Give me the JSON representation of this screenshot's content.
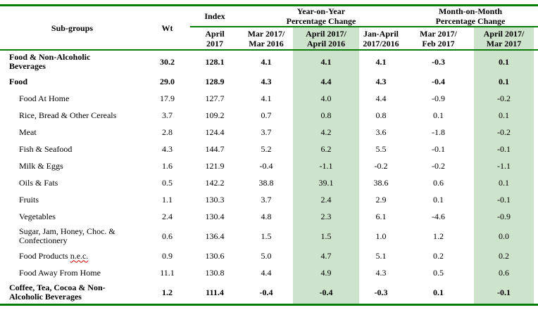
{
  "colors": {
    "border_green": "#007d00",
    "highlight_green": "#cee3cc",
    "spellcheck_red": "#cc0000"
  },
  "table": {
    "header": {
      "subgroups": "Sub-groups",
      "wt": "Wt",
      "index_group": "Index",
      "yoy_group_line1": "Year-on-Year",
      "yoy_group_line2": "Percentage Change",
      "mom_group_line1": "Month-on-Month",
      "mom_group_line2": "Percentage Change",
      "cols": [
        {
          "line1": "April",
          "line2": "2017",
          "highlight": false
        },
        {
          "line1": "Mar 2017/",
          "line2": "Mar 2016",
          "highlight": false
        },
        {
          "line1": "April 2017/",
          "line2": "April 2016",
          "highlight": true
        },
        {
          "line1": "Jan-April",
          "line2": "2017/2016",
          "highlight": false
        },
        {
          "line1": "Mar 2017/",
          "line2": "Feb 2017",
          "highlight": false
        },
        {
          "line1": "April 2017/",
          "line2": "Mar 2017",
          "highlight": true
        }
      ]
    },
    "rows": [
      {
        "name": "Food & Non-Alcoholic",
        "name2": "Beverages",
        "wavy": "",
        "bold": true,
        "indent": false,
        "values": [
          "30.2",
          "128.1",
          "4.1",
          "4.1",
          "4.1",
          "-0.3",
          "0.1"
        ]
      },
      {
        "name": "Food",
        "name2": "",
        "wavy": "",
        "bold": true,
        "indent": false,
        "values": [
          "29.0",
          "128.9",
          "4.3",
          "4.4",
          "4.3",
          "-0.4",
          "0.1"
        ]
      },
      {
        "name": "Food At Home",
        "name2": "",
        "wavy": "",
        "bold": false,
        "indent": true,
        "values": [
          "17.9",
          "127.7",
          "4.1",
          "4.0",
          "4.4",
          "-0.9",
          "-0.2"
        ]
      },
      {
        "name": "Rice, Bread & Other Cereals",
        "name2": "",
        "wavy": "",
        "bold": false,
        "indent": true,
        "values": [
          "3.7",
          "109.2",
          "0.7",
          "0.8",
          "0.8",
          "0.1",
          "0.1"
        ]
      },
      {
        "name": "Meat",
        "name2": "",
        "wavy": "",
        "bold": false,
        "indent": true,
        "values": [
          "2.8",
          "124.4",
          "3.7",
          "4.2",
          "3.6",
          "-1.8",
          "-0.2"
        ]
      },
      {
        "name": "Fish & Seafood",
        "name2": "",
        "wavy": "",
        "bold": false,
        "indent": true,
        "values": [
          "4.3",
          "144.7",
          "5.2",
          "6.2",
          "5.5",
          "-0.1",
          "-0.1"
        ]
      },
      {
        "name": "Milk & Eggs",
        "name2": "",
        "wavy": "",
        "bold": false,
        "indent": true,
        "values": [
          "1.6",
          "121.9",
          "-0.4",
          "-1.1",
          "-0.2",
          "-0.2",
          "-1.1"
        ]
      },
      {
        "name": "Oils & Fats",
        "name2": "",
        "wavy": "",
        "bold": false,
        "indent": true,
        "values": [
          "0.5",
          "142.2",
          "38.8",
          "39.1",
          "38.6",
          "0.6",
          "0.1"
        ]
      },
      {
        "name": "Fruits",
        "name2": "",
        "wavy": "",
        "bold": false,
        "indent": true,
        "values": [
          "1.1",
          "130.3",
          "3.7",
          "2.4",
          "2.9",
          "0.1",
          "-0.1"
        ]
      },
      {
        "name": "Vegetables",
        "name2": "",
        "wavy": "",
        "bold": false,
        "indent": true,
        "values": [
          "2.4",
          "130.4",
          "4.8",
          "2.3",
          "6.1",
          "-4.6",
          "-0.9"
        ]
      },
      {
        "name": "Sugar, Jam, Honey, Choc. &",
        "name2": "Confectionery",
        "wavy": "",
        "bold": false,
        "indent": true,
        "values": [
          "0.6",
          "136.4",
          "1.5",
          "1.5",
          "1.0",
          "1.2",
          "0.0"
        ]
      },
      {
        "name": "Food Products",
        "name2": "",
        "wavy": "n.e.c.",
        "bold": false,
        "indent": true,
        "values": [
          "0.9",
          "130.6",
          "5.0",
          "4.7",
          "5.1",
          "0.2",
          "0.2"
        ]
      },
      {
        "name": "Food Away From Home",
        "name2": "",
        "wavy": "",
        "bold": false,
        "indent": true,
        "values": [
          "11.1",
          "130.8",
          "4.4",
          "4.9",
          "4.3",
          "0.5",
          "0.6"
        ]
      },
      {
        "name": "Coffee, Tea, Cocoa & Non-",
        "name2": "Alcoholic Beverages",
        "wavy": "",
        "bold": true,
        "indent": false,
        "values": [
          "1.2",
          "111.4",
          "-0.4",
          "-0.4",
          "-0.3",
          "0.1",
          "-0.1"
        ]
      }
    ]
  }
}
